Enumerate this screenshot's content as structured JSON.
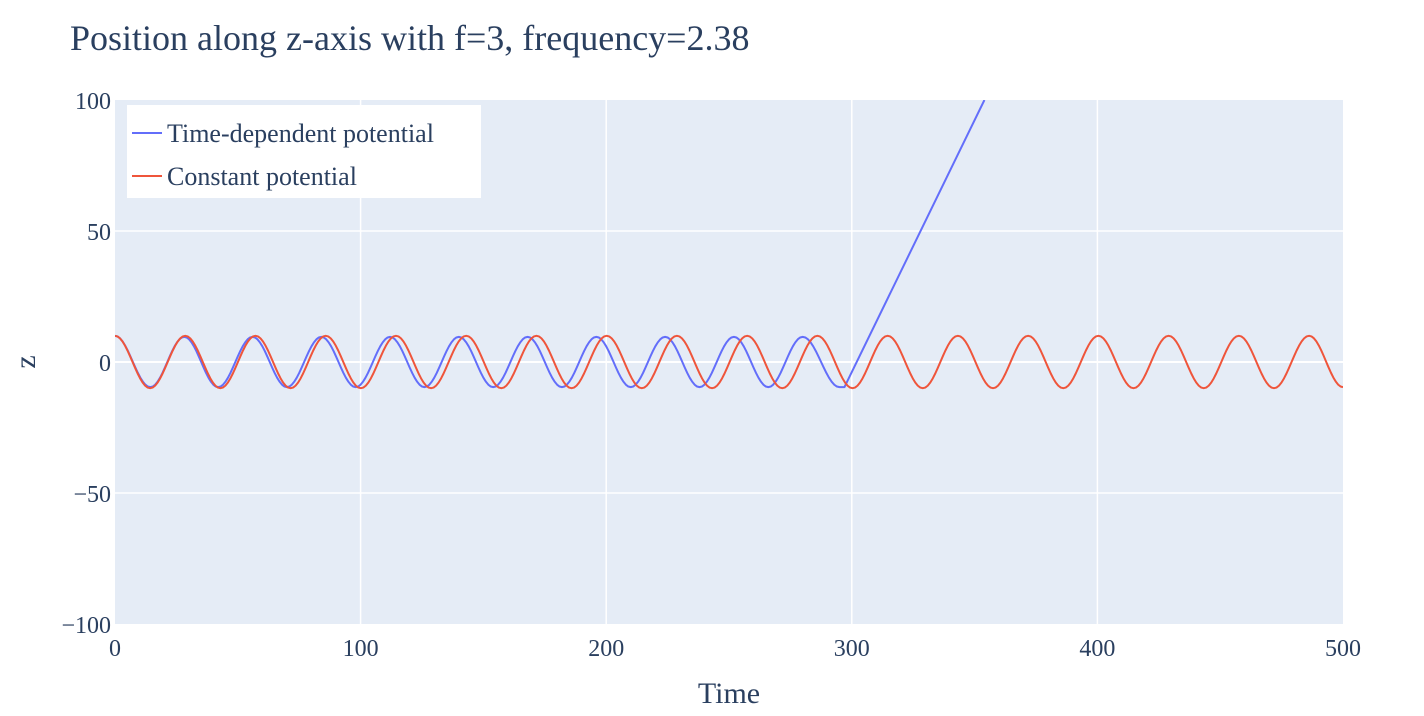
{
  "chart_data": {
    "type": "line",
    "title": "Position along z-axis with f=3, frequency=2.38",
    "xlabel": "Time",
    "ylabel": "z",
    "xlim": [
      0,
      500
    ],
    "ylim": [
      -100,
      100
    ],
    "x_ticks": [
      "0",
      "100",
      "200",
      "300",
      "400",
      "500"
    ],
    "x_tick_values": [
      0,
      100,
      200,
      300,
      400,
      500
    ],
    "y_ticks": [
      "100",
      "50",
      "0",
      "−50",
      "−100"
    ],
    "y_tick_values": [
      100,
      50,
      0,
      -50,
      -100
    ],
    "grid": true,
    "legend_position": "top-left",
    "series": [
      {
        "name": "Time-dependent potential",
        "color": "#636efa",
        "points": [
          [
            0,
            10
          ],
          [
            14.4,
            -9.6
          ],
          [
            28.2,
            9.6
          ],
          [
            42,
            -9.6
          ],
          [
            56,
            9.6
          ],
          [
            70,
            -9.6
          ],
          [
            84,
            9.6
          ],
          [
            98,
            -9.6
          ],
          [
            112,
            9.6
          ],
          [
            126,
            -9.6
          ],
          [
            140,
            9.6
          ],
          [
            154,
            -9.6
          ],
          [
            168,
            9.6
          ],
          [
            182,
            -9.6
          ],
          [
            196,
            9.6
          ],
          [
            210,
            -9.6
          ],
          [
            224,
            9.6
          ],
          [
            238,
            -9.6
          ],
          [
            252,
            9.6
          ],
          [
            266,
            -9.6
          ],
          [
            280,
            9.6
          ],
          [
            295,
            -9.6
          ],
          [
            297,
            -9.6
          ],
          [
            354,
            100
          ]
        ]
      },
      {
        "name": "Constant potential",
        "color": "#ef553b",
        "points": [
          [
            0,
            10
          ],
          [
            14.3,
            -10
          ],
          [
            28.6,
            10
          ],
          [
            42.9,
            -10
          ],
          [
            57.2,
            10
          ],
          [
            71.5,
            -10
          ],
          [
            85.8,
            10
          ],
          [
            100.1,
            -10
          ],
          [
            114.4,
            10
          ],
          [
            128.7,
            -10
          ],
          [
            143,
            10
          ],
          [
            157.3,
            -10
          ],
          [
            171.6,
            10
          ],
          [
            185.9,
            -10
          ],
          [
            200.2,
            10
          ],
          [
            214.5,
            -10
          ],
          [
            228.8,
            10
          ],
          [
            243.1,
            -10
          ],
          [
            257.4,
            10
          ],
          [
            271.7,
            -10
          ],
          [
            286,
            10
          ],
          [
            300.3,
            -10
          ],
          [
            314.6,
            10
          ],
          [
            328.9,
            -10
          ],
          [
            343.2,
            10
          ],
          [
            357.5,
            -10
          ],
          [
            371.8,
            10
          ],
          [
            386.1,
            -10
          ],
          [
            400.4,
            10
          ],
          [
            414.7,
            -10
          ],
          [
            429,
            10
          ],
          [
            443.3,
            -10
          ],
          [
            457.6,
            10
          ],
          [
            471.9,
            -10
          ],
          [
            486.2,
            10
          ],
          [
            500,
            -9.6
          ]
        ]
      }
    ]
  }
}
